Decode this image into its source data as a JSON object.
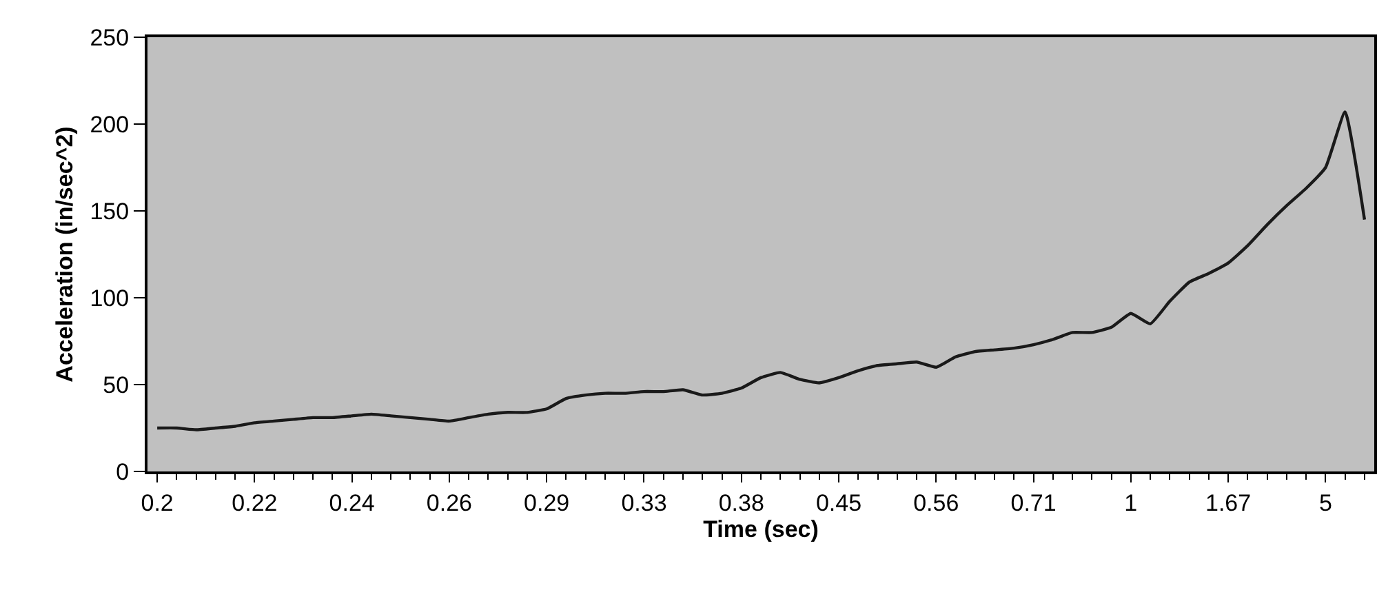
{
  "chart_data": {
    "type": "line",
    "xlabel": "Time (sec)",
    "ylabel": "Acceleration (in/sec^2)",
    "categories": [
      "0.2",
      null,
      null,
      null,
      null,
      "0.22",
      null,
      null,
      null,
      null,
      "0.24",
      null,
      null,
      null,
      null,
      "0.26",
      null,
      null,
      null,
      null,
      "0.29",
      null,
      null,
      null,
      null,
      "0.33",
      null,
      null,
      null,
      null,
      "0.38",
      null,
      null,
      null,
      null,
      "0.45",
      null,
      null,
      null,
      null,
      "0.56",
      null,
      null,
      null,
      null,
      "0.71",
      null,
      null,
      null,
      null,
      "1",
      null,
      null,
      null,
      null,
      "1.67",
      null,
      null,
      null,
      null,
      "5",
      null,
      null
    ],
    "series": [
      {
        "color": "#1a1a1a",
        "values": [
          25,
          25,
          24,
          25,
          26,
          28,
          29,
          30,
          31,
          31,
          32,
          33,
          32,
          31,
          30,
          29,
          31,
          33,
          34,
          34,
          36,
          42,
          44,
          45,
          45,
          46,
          46,
          47,
          44,
          45,
          48,
          54,
          57,
          53,
          51,
          54,
          58,
          61,
          62,
          63,
          60,
          66,
          69,
          70,
          71,
          73,
          76,
          80,
          80,
          83,
          91,
          85,
          98,
          109,
          114,
          120,
          130,
          142,
          153,
          163,
          175,
          207,
          145
        ]
      }
    ],
    "ylim": [
      0,
      250
    ],
    "yticks": [
      0,
      50,
      100,
      150,
      200,
      250
    ],
    "grid": false,
    "marker": "none",
    "line_style": "solid"
  }
}
